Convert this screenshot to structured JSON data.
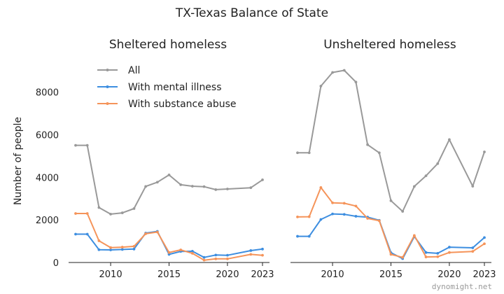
{
  "chart_data": {
    "type": "line",
    "title": "TX-Texas Balance of State",
    "ylabel": "Number of people",
    "watermark": "dynomight.net",
    "ylim": [
      0,
      9200
    ],
    "xlim": [
      2006.4,
      2023.6
    ],
    "yticks": [
      0,
      2000,
      4000,
      6000,
      8000
    ],
    "yticklabels": [
      "0",
      "2000",
      "4000",
      "6000",
      "8000"
    ],
    "xticks": [
      2010,
      2015,
      2020,
      2023
    ],
    "xticklabels": [
      "2010",
      "2015",
      "2020",
      "2023"
    ],
    "legend": {
      "placement": "top-left of first panel",
      "entries": [
        "All",
        "With mental illness",
        "With substance abuse"
      ]
    },
    "colors": {
      "All": "#999999",
      "With mental illness": "#3d8ee0",
      "With substance abuse": "#f5945a"
    },
    "panels": [
      {
        "title": "Sheltered homeless",
        "series": [
          {
            "name": "All",
            "x": [
              2007,
              2008,
              2009,
              2010,
              2011,
              2012,
              2013,
              2014,
              2015,
              2016,
              2017,
              2018,
              2019,
              2020,
              2022,
              2023
            ],
            "y": [
              5500,
              5500,
              2580,
              2270,
              2330,
              2530,
              3570,
              3770,
              4110,
              3650,
              3580,
              3560,
              3420,
              3450,
              3510,
              3880
            ]
          },
          {
            "name": "With mental illness",
            "x": [
              2007,
              2008,
              2009,
              2010,
              2011,
              2012,
              2013,
              2014,
              2015,
              2016,
              2017,
              2018,
              2019,
              2020,
              2022,
              2023
            ],
            "y": [
              1330,
              1330,
              600,
              590,
              610,
              630,
              1380,
              1460,
              380,
              520,
              530,
              240,
              350,
              340,
              560,
              630
            ]
          },
          {
            "name": "With substance abuse",
            "x": [
              2007,
              2008,
              2009,
              2010,
              2011,
              2012,
              2013,
              2014,
              2015,
              2016,
              2017,
              2018,
              2019,
              2020,
              2022,
              2023
            ],
            "y": [
              2300,
              2300,
              1020,
              700,
              720,
              760,
              1350,
              1430,
              470,
              590,
              430,
              110,
              170,
              170,
              380,
              340
            ]
          }
        ]
      },
      {
        "title": "Unsheltered homeless",
        "series": [
          {
            "name": "All",
            "x": [
              2007,
              2008,
              2009,
              2010,
              2011,
              2012,
              2013,
              2014,
              2015,
              2016,
              2017,
              2018,
              2019,
              2020,
              2022,
              2023
            ],
            "y": [
              5150,
              5150,
              8280,
              8920,
              9020,
              8470,
              5530,
              5150,
              2900,
              2400,
              3570,
              4070,
              4640,
              5770,
              3580,
              5190
            ]
          },
          {
            "name": "With mental illness",
            "x": [
              2007,
              2008,
              2009,
              2010,
              2011,
              2012,
              2013,
              2014,
              2015,
              2016,
              2017,
              2018,
              2019,
              2020,
              2022,
              2023
            ],
            "y": [
              1230,
              1230,
              2020,
              2280,
              2260,
              2170,
              2130,
              1980,
              460,
              180,
              1220,
              470,
              430,
              720,
              690,
              1170
            ]
          },
          {
            "name": "With substance abuse",
            "x": [
              2007,
              2008,
              2009,
              2010,
              2011,
              2012,
              2013,
              2014,
              2015,
              2016,
              2017,
              2018,
              2019,
              2020,
              2022,
              2023
            ],
            "y": [
              2140,
              2150,
              3520,
              2800,
              2780,
              2650,
              2070,
              1960,
              380,
              240,
              1270,
              260,
              270,
              470,
              520,
              880
            ]
          }
        ]
      }
    ]
  }
}
